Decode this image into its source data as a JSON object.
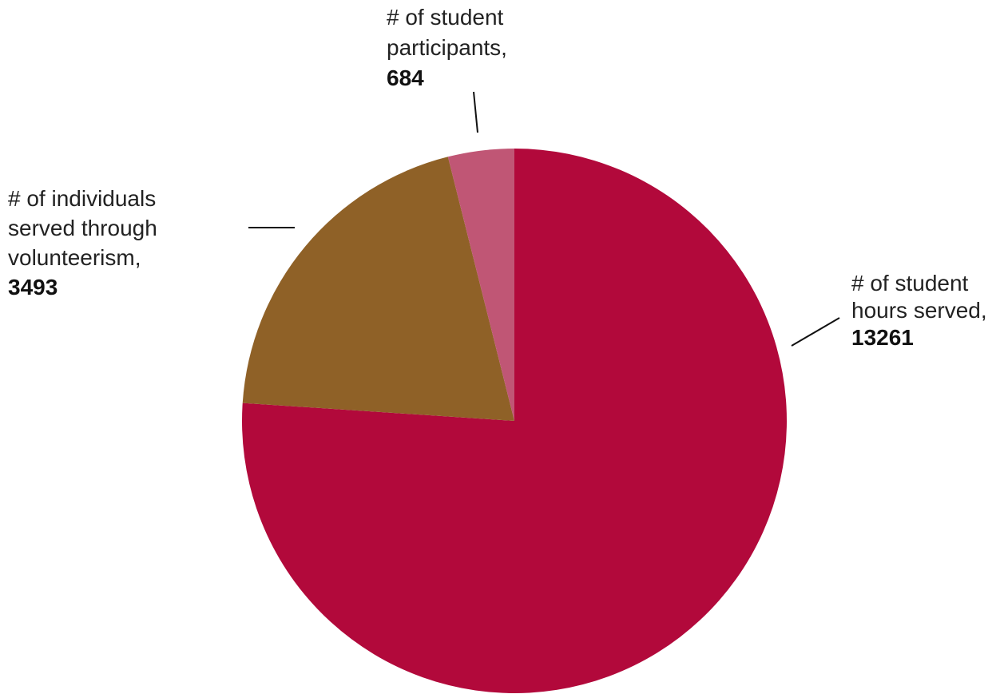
{
  "chart_data": {
    "type": "pie",
    "title": "",
    "start_angle_deg": 0,
    "direction": "clockwise",
    "slices": [
      {
        "label": [
          "# of student",
          "hours served,"
        ],
        "value": 13261,
        "value_text": "13261",
        "color": "#b2093b"
      },
      {
        "label": [
          "# of individuals",
          "served through",
          "volunteerism,"
        ],
        "value": 3493,
        "value_text": "3493",
        "color": "#8f6127"
      },
      {
        "label": [
          "# of student",
          "participants,"
        ],
        "value": 684,
        "value_text": "684",
        "color": "#c05675"
      }
    ],
    "legend": "none",
    "labels": "outside with leader lines"
  }
}
